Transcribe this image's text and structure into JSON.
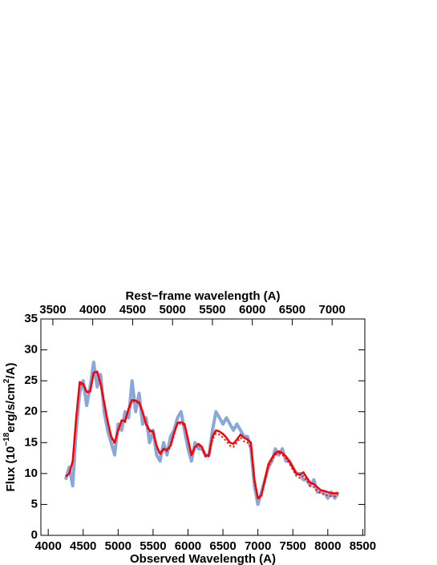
{
  "chart_data": {
    "type": "line",
    "xlabel": "Observed Wavelength (A)",
    "x2label": "Rest−frame wavelength (A)",
    "ylabel": [
      "Flux (10",
      "−18",
      "erg/s/cm",
      "2",
      "/A)"
    ],
    "xlim": [
      3895,
      8530
    ],
    "xticks": [
      4000,
      4500,
      5000,
      5500,
      6000,
      6500,
      7000,
      7500,
      8000,
      8500
    ],
    "x2lim": [
      3350,
      7410
    ],
    "x2ticks": [
      3500,
      4000,
      4500,
      5000,
      5500,
      6000,
      6500,
      7000
    ],
    "ylim": [
      0,
      35
    ],
    "yticks": [
      0,
      5,
      10,
      15,
      20,
      25,
      30,
      35
    ],
    "x": [
      4250,
      4300,
      4350,
      4400,
      4450,
      4500,
      4550,
      4600,
      4650,
      4700,
      4750,
      4800,
      4850,
      4900,
      4950,
      5000,
      5050,
      5100,
      5150,
      5200,
      5250,
      5300,
      5350,
      5400,
      5450,
      5500,
      5550,
      5600,
      5650,
      5700,
      5750,
      5800,
      5850,
      5900,
      5950,
      6000,
      6050,
      6100,
      6150,
      6200,
      6250,
      6300,
      6350,
      6400,
      6450,
      6500,
      6550,
      6600,
      6650,
      6700,
      6750,
      6800,
      6850,
      6900,
      6950,
      7000,
      7050,
      7100,
      7150,
      7200,
      7250,
      7300,
      7350,
      7400,
      7450,
      7500,
      7550,
      7600,
      7650,
      7700,
      7750,
      7800,
      7850,
      7900,
      7950,
      8000,
      8050,
      8100,
      8150
    ],
    "series": [
      {
        "color": "#7b9fd6",
        "style": "band",
        "values": [
          9,
          11,
          8,
          17,
          23,
          25,
          21,
          24,
          28,
          24,
          26,
          20,
          17,
          15,
          13,
          18,
          17,
          20,
          19,
          25,
          20,
          23,
          18,
          19,
          15,
          17,
          13,
          12,
          15,
          13,
          16,
          17,
          19,
          20,
          17,
          14,
          12,
          15,
          14,
          14,
          13,
          13,
          17,
          20,
          19,
          18,
          19,
          18,
          17,
          18,
          17,
          16,
          16,
          14,
          8,
          5,
          7,
          9,
          11,
          12,
          14,
          13,
          14,
          12,
          12,
          11,
          10,
          10,
          9,
          9,
          8,
          9,
          7,
          7,
          7,
          6,
          7,
          6,
          7
        ]
      },
      {
        "color": "#ff0000",
        "style": "dotted",
        "values": [
          9.5,
          10,
          12,
          19,
          24.5,
          24.3,
          23,
          23.2,
          26,
          26.3,
          24.3,
          21.3,
          18.3,
          15.8,
          14.8,
          16.8,
          18.4,
          18.3,
          20.3,
          21.7,
          21.6,
          21.3,
          19.8,
          17.8,
          16.8,
          16.6,
          14.3,
          13,
          13.8,
          13.6,
          14.3,
          16.3,
          18,
          18.1,
          17.8,
          15.3,
          12.8,
          14.1,
          14.6,
          14.1,
          12.6,
          12.8,
          15.5,
          16.5,
          16.3,
          15.8,
          15.2,
          14.5,
          14.3,
          15,
          15.8,
          15.2,
          15,
          14.3,
          8.8,
          5.8,
          6.3,
          8.8,
          11.2,
          12.2,
          13,
          13.3,
          13,
          12.5,
          11.6,
          10.6,
          9.6,
          9.3,
          9.6,
          8.8,
          8,
          7.8,
          7.2,
          6.8,
          6.6,
          6.5,
          6.3,
          6.3,
          6.4
        ]
      },
      {
        "color": "#ff0000",
        "style": "solid",
        "values": [
          9.5,
          10,
          12,
          19,
          24.8,
          24.5,
          23.2,
          23.3,
          26.3,
          26.5,
          24.5,
          21.5,
          18.5,
          16,
          15,
          17,
          18.6,
          18.5,
          20.5,
          21.9,
          21.8,
          21.5,
          20,
          18,
          17,
          16.8,
          14.5,
          13.2,
          14,
          13.8,
          14.5,
          16.5,
          18.2,
          18.3,
          18,
          15.5,
          13,
          14.3,
          14.8,
          14.3,
          12.8,
          13,
          16,
          17,
          16.8,
          16.4,
          15.8,
          15,
          14.8,
          15.5,
          16.3,
          15.8,
          15.5,
          15,
          9,
          6,
          6.5,
          9,
          11.5,
          12.5,
          13.3,
          13.6,
          13.3,
          12.8,
          12,
          11,
          10,
          9.8,
          10.2,
          9.3,
          8.5,
          8.3,
          7.8,
          7.3,
          7.2,
          7,
          6.8,
          6.8,
          6.8
        ]
      }
    ]
  }
}
